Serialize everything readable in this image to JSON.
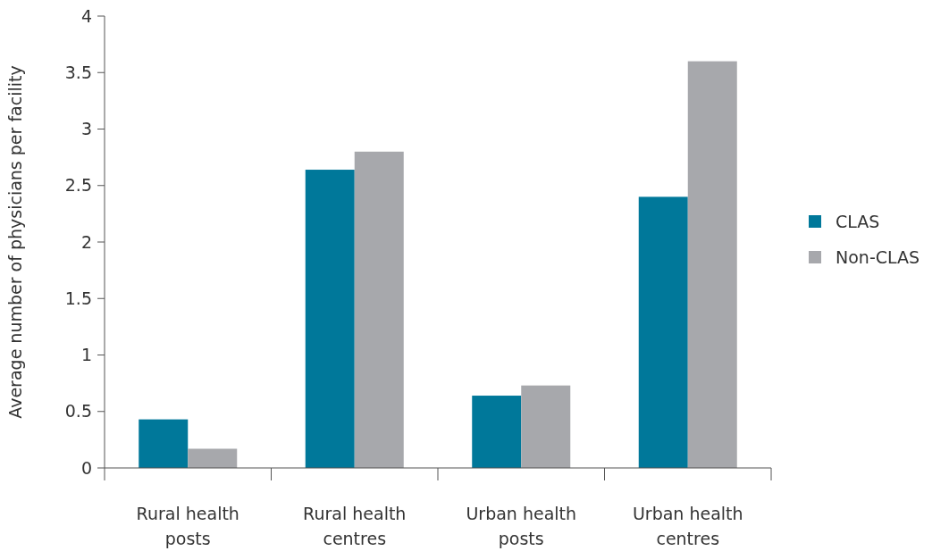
{
  "chart_data": {
    "type": "bar",
    "ylabel": "Average number of physicians per facility",
    "categories": [
      "Rural health posts",
      "Rural health centres",
      "Urban health posts",
      "Urban health centres"
    ],
    "series": [
      {
        "name": "CLAS",
        "color": "#00789a",
        "values": [
          0.43,
          2.64,
          0.64,
          2.4
        ]
      },
      {
        "name": "Non-CLAS",
        "color": "#a7a8ac",
        "values": [
          0.17,
          2.8,
          0.73,
          3.6
        ]
      }
    ],
    "ylim": [
      0,
      4
    ],
    "yticks": [
      0,
      0.5,
      1,
      1.5,
      2,
      2.5,
      3,
      3.5,
      4
    ],
    "grid": false,
    "legend": "right"
  }
}
